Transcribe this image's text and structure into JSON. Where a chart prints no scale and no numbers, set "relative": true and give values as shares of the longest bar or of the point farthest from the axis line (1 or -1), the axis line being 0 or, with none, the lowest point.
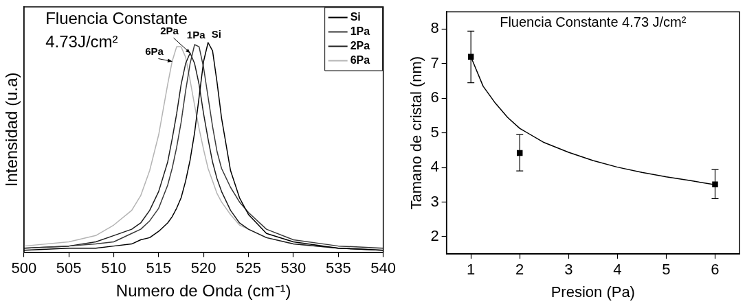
{
  "chart_data": [
    {
      "type": "line",
      "xlabel": "Numero de Onda (cm⁻¹)",
      "ylabel": "Intensidad (u.a)",
      "relative": true,
      "xlim": [
        500,
        540
      ],
      "xticks": [
        500,
        505,
        510,
        515,
        520,
        525,
        530,
        535,
        540
      ],
      "grid": false,
      "legend": "top right",
      "annotations": [
        "Fluencia Constante",
        "4.73J/cm²",
        {
          "text": "6Pa",
          "x": 516.5,
          "y": 0.91
        },
        {
          "text": "2Pa",
          "x": 518.5,
          "y": 0.95
        },
        {
          "text": "1Pa",
          "x": 519,
          "y": 0.99
        },
        {
          "text": "Si",
          "x": 520.5,
          "y": 1
        }
      ],
      "x": [
        500,
        505,
        508,
        510,
        512,
        513,
        514,
        515,
        516,
        516.5,
        517,
        517.5,
        518,
        518.5,
        519,
        519.5,
        520,
        520.5,
        521,
        521.5,
        522,
        523,
        524,
        525,
        527,
        530,
        535,
        540
      ],
      "series": [
        {
          "name": "Si",
          "color": "#000000",
          "values": [
            0.01,
            0.02,
            0.02,
            0.03,
            0.04,
            0.06,
            0.07,
            0.1,
            0.14,
            0.17,
            0.21,
            0.26,
            0.34,
            0.44,
            0.57,
            0.74,
            0.91,
            1,
            0.96,
            0.81,
            0.64,
            0.39,
            0.26,
            0.18,
            0.09,
            0.05,
            0.02,
            0.01
          ]
        },
        {
          "name": "1Pa",
          "color": "#3a3a3a",
          "values": [
            0.02,
            0.03,
            0.04,
            0.05,
            0.09,
            0.11,
            0.15,
            0.21,
            0.32,
            0.4,
            0.5,
            0.62,
            0.77,
            0.9,
            0.99,
            0.98,
            0.88,
            0.74,
            0.6,
            0.48,
            0.4,
            0.31,
            0.24,
            0.19,
            0.11,
            0.06,
            0.03,
            0.02
          ]
        },
        {
          "name": "2Pa",
          "color": "#1e1e1e",
          "values": [
            0.02,
            0.03,
            0.05,
            0.08,
            0.11,
            0.14,
            0.2,
            0.29,
            0.43,
            0.54,
            0.66,
            0.8,
            0.9,
            0.95,
            0.9,
            0.8,
            0.66,
            0.54,
            0.43,
            0.35,
            0.29,
            0.2,
            0.14,
            0.11,
            0.07,
            0.04,
            0.02,
            0.01
          ]
        },
        {
          "name": "6Pa",
          "color": "#b4b4b4",
          "values": [
            0.03,
            0.05,
            0.08,
            0.13,
            0.2,
            0.27,
            0.39,
            0.56,
            0.8,
            0.91,
            0.98,
            0.98,
            0.93,
            0.82,
            0.7,
            0.59,
            0.49,
            0.4,
            0.34,
            0.28,
            0.24,
            0.18,
            0.13,
            0.11,
            0.07,
            0.04,
            0.02,
            0.02
          ]
        }
      ]
    },
    {
      "type": "scatter",
      "xlabel": "Presion (Pa)",
      "ylabel": "Tamano de cristal (nm)",
      "xlim": [
        0.5,
        6.5
      ],
      "xticks": [
        1,
        2,
        3,
        4,
        5,
        6
      ],
      "ylim": [
        1.5,
        8.5
      ],
      "yticks": [
        2,
        3,
        4,
        5,
        6,
        7,
        8
      ],
      "grid": false,
      "annotations": [
        "Fluencia Constante 4.73 J/cm²"
      ],
      "series": [
        {
          "marker": "square",
          "color": "#000000",
          "x": [
            1,
            2,
            6
          ],
          "values": [
            7.2,
            4.42,
            3.51
          ],
          "errors": [
            [
              6.45,
              7.94
            ],
            [
              3.9,
              4.95
            ],
            [
              3.1,
              3.94
            ]
          ]
        },
        {
          "type": "line",
          "color": "#000000",
          "x": [
            1,
            1.25,
            1.5,
            1.75,
            2,
            2.5,
            3,
            3.5,
            4,
            4.5,
            5,
            5.5,
            6
          ],
          "values": [
            7.2,
            6.35,
            5.86,
            5.45,
            5.13,
            4.72,
            4.44,
            4.2,
            4.01,
            3.86,
            3.73,
            3.62,
            3.5
          ]
        }
      ]
    }
  ]
}
